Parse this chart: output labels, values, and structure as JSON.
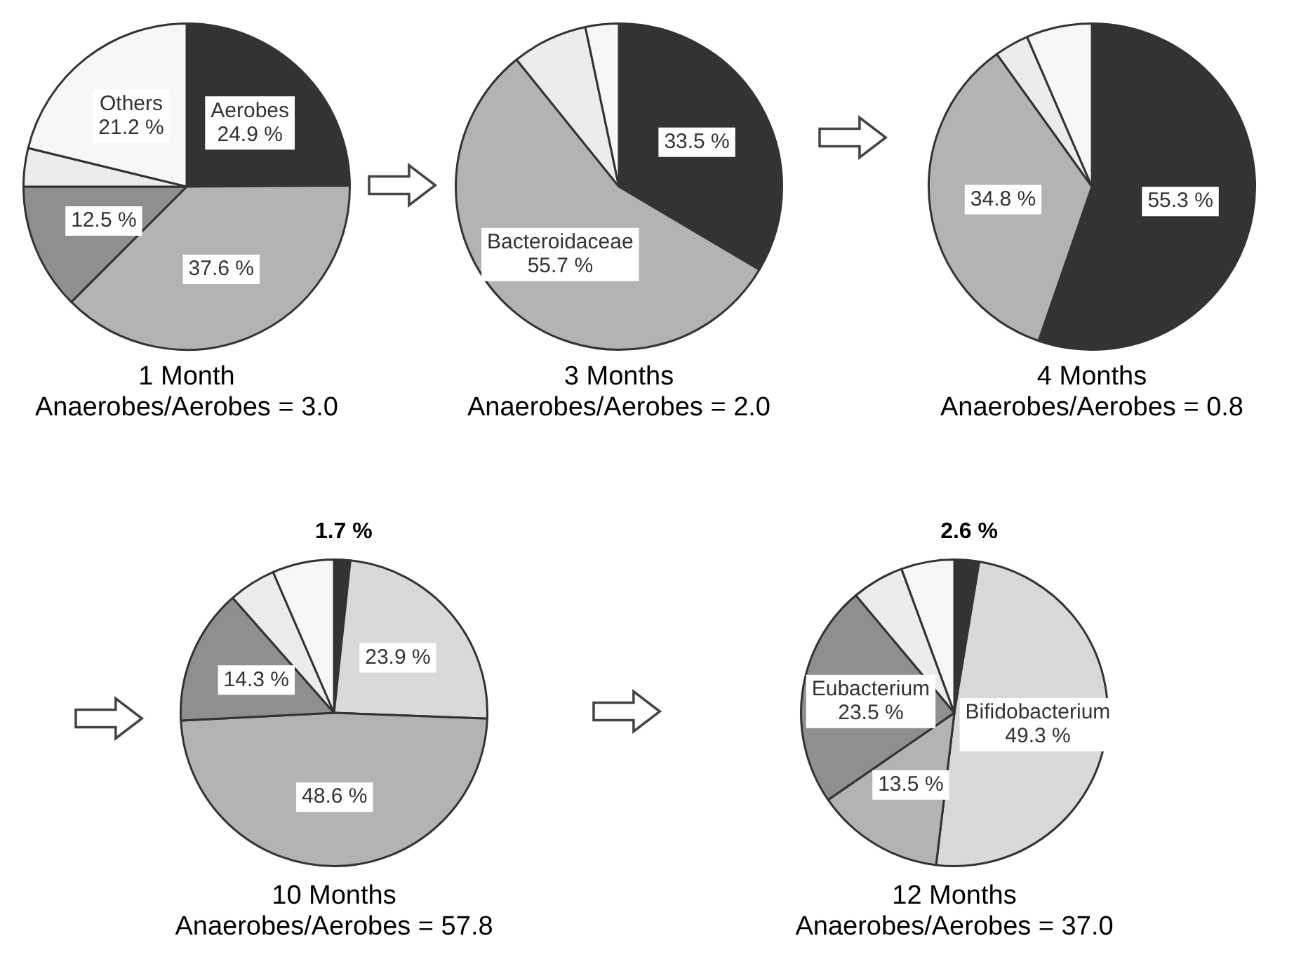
{
  "chart_data": [
    {
      "type": "pie",
      "title": "1 Month",
      "subtitle": "Anaerobes/Aerobes = 3.0",
      "categories": [
        "Aerobes",
        null,
        null,
        null,
        "Others"
      ],
      "values": [
        24.9,
        37.6,
        12.5,
        3.8,
        21.2
      ],
      "colors": [
        "#333333",
        "#b3b3b3",
        "#8f8f8f",
        "#ececec",
        "#f7f7f7"
      ],
      "value_labels": [
        "24.9 %",
        "37.6 %",
        "12.5 %",
        null,
        "21.2 %"
      ]
    },
    {
      "type": "pie",
      "title": "3 Months",
      "subtitle": "Anaerobes/Aerobes = 2.0",
      "categories": [
        null,
        "Bacteroidaceae",
        null,
        null
      ],
      "values": [
        33.5,
        55.7,
        7.5,
        3.3
      ],
      "colors": [
        "#333333",
        "#b3b3b3",
        "#ececec",
        "#f7f7f7"
      ],
      "value_labels": [
        "33.5 %",
        "55.7 %",
        null,
        null
      ]
    },
    {
      "type": "pie",
      "title": "4 Months",
      "subtitle": "Anaerobes/Aerobes = 0.8",
      "categories": [
        null,
        null,
        null,
        null
      ],
      "values": [
        55.3,
        34.8,
        3.4,
        6.5
      ],
      "colors": [
        "#333333",
        "#b3b3b3",
        "#ececec",
        "#f7f7f7"
      ],
      "value_labels": [
        "55.3 %",
        "34.8 %",
        null,
        null
      ]
    },
    {
      "type": "pie",
      "title": "10 Months",
      "subtitle": "Anaerobes/Aerobes = 57.8",
      "categories": [
        null,
        null,
        null,
        null,
        null,
        null
      ],
      "values": [
        1.7,
        23.9,
        48.6,
        14.3,
        5.0,
        6.5
      ],
      "colors": [
        "#333333",
        "#d9d9d9",
        "#b3b3b3",
        "#8f8f8f",
        "#ececec",
        "#f7f7f7"
      ],
      "value_labels": [
        "1.7 %",
        "23.9 %",
        "48.6 %",
        "14.3 %",
        null,
        null
      ]
    },
    {
      "type": "pie",
      "title": "12 Months",
      "subtitle": "Anaerobes/Aerobes = 37.0",
      "categories": [
        null,
        "Bifidobacterium",
        null,
        "Eubacterium",
        null,
        null
      ],
      "values": [
        2.6,
        49.3,
        13.5,
        23.5,
        5.5,
        5.6
      ],
      "colors": [
        "#333333",
        "#d9d9d9",
        "#b3b3b3",
        "#8f8f8f",
        "#ececec",
        "#f7f7f7"
      ],
      "value_labels": [
        "2.6 %",
        "49.3 %",
        "13.5 %",
        "23.5 %",
        null,
        null
      ]
    }
  ]
}
